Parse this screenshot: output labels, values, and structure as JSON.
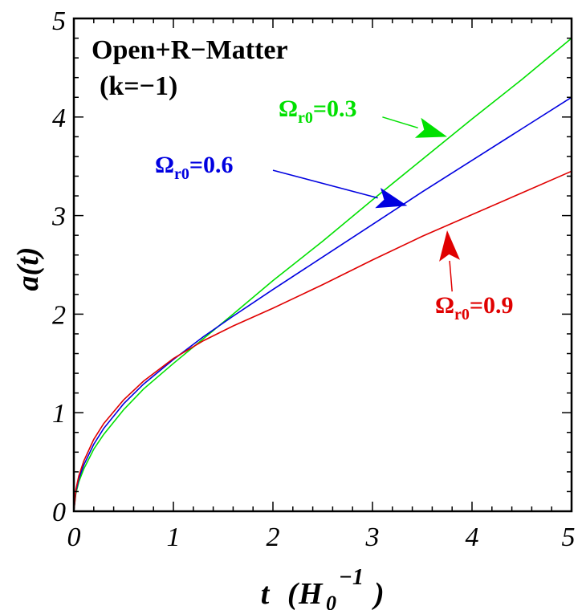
{
  "chart_data": {
    "type": "line",
    "title": "Open+R−Matter",
    "subtitle": "(k=−1)",
    "xlabel_main": "t",
    "xlabel_unit": "H",
    "xlabel_unit_sub": "0",
    "xlabel_unit_sup": "−1",
    "ylabel": "a(t)",
    "xlim": [
      0,
      5
    ],
    "ylim": [
      0,
      5
    ],
    "xticks": [
      "0",
      "1",
      "2",
      "3",
      "4",
      "5"
    ],
    "yticks": [
      "0",
      "1",
      "2",
      "3",
      "4",
      "5"
    ],
    "grid": false,
    "series": [
      {
        "omega_symbol": "Ω",
        "omega_sub": "r0",
        "omega_value": "=0.3",
        "color": "#00e000",
        "x": [
          0,
          0.02,
          0.05,
          0.1,
          0.2,
          0.3,
          0.5,
          0.7,
          1.0,
          1.3,
          1.6,
          2.0,
          2.5,
          3.0,
          3.5,
          4.0,
          4.5,
          5.0
        ],
        "y": [
          0,
          0.18,
          0.3,
          0.43,
          0.63,
          0.78,
          1.03,
          1.24,
          1.5,
          1.75,
          2.0,
          2.34,
          2.74,
          3.16,
          3.57,
          3.98,
          4.38,
          4.8
        ]
      },
      {
        "omega_symbol": "Ω",
        "omega_sub": "r0",
        "omega_value": "=0.6",
        "color": "#0000e0",
        "x": [
          0,
          0.02,
          0.05,
          0.1,
          0.2,
          0.3,
          0.5,
          0.7,
          1.0,
          1.3,
          1.6,
          2.0,
          2.5,
          3.0,
          3.5,
          4.0,
          4.5,
          5.0
        ],
        "y": [
          0,
          0.2,
          0.33,
          0.47,
          0.68,
          0.84,
          1.09,
          1.29,
          1.54,
          1.77,
          1.98,
          2.25,
          2.58,
          2.91,
          3.24,
          3.56,
          3.88,
          4.2
        ]
      },
      {
        "omega_symbol": "Ω",
        "omega_sub": "r0",
        "omega_value": "=0.9",
        "color": "#e00000",
        "x": [
          0,
          0.02,
          0.05,
          0.1,
          0.2,
          0.3,
          0.5,
          0.7,
          1.0,
          1.3,
          1.6,
          2.0,
          2.5,
          3.0,
          3.5,
          4.0,
          4.5,
          5.0
        ],
        "y": [
          0,
          0.22,
          0.36,
          0.51,
          0.73,
          0.89,
          1.13,
          1.32,
          1.55,
          1.73,
          1.88,
          2.06,
          2.3,
          2.55,
          2.79,
          3.01,
          3.23,
          3.45
        ]
      }
    ]
  }
}
